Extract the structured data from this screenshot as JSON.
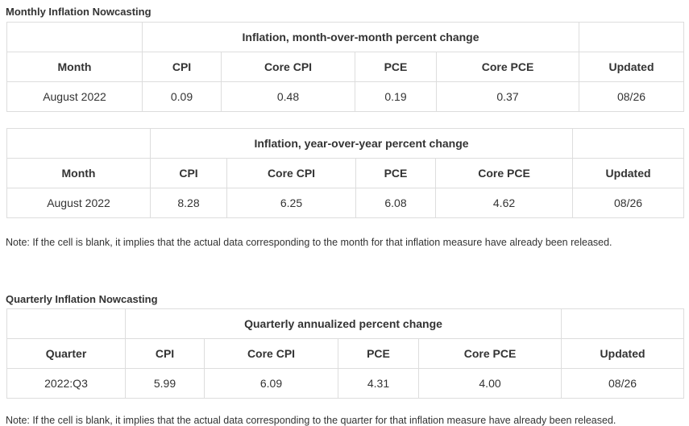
{
  "monthly": {
    "title": "Monthly Inflation Nowcasting",
    "tables": [
      {
        "caption": "Inflation, month-over-month percent change",
        "header": [
          "Month",
          "CPI",
          "Core CPI",
          "PCE",
          "Core PCE",
          "Updated"
        ],
        "rows": [
          [
            "August 2022",
            "0.09",
            "0.48",
            "0.19",
            "0.37",
            "08/26"
          ]
        ]
      },
      {
        "caption": "Inflation, year-over-year percent change",
        "header": [
          "Month",
          "CPI",
          "Core CPI",
          "PCE",
          "Core PCE",
          "Updated"
        ],
        "rows": [
          [
            "August 2022",
            "8.28",
            "6.25",
            "6.08",
            "4.62",
            "08/26"
          ]
        ]
      }
    ],
    "note": "Note: If the cell is blank, it implies that the actual data corresponding to the month for that inflation measure have already been released."
  },
  "quarterly": {
    "title": "Quarterly Inflation Nowcasting",
    "tables": [
      {
        "caption": "Quarterly annualized percent change",
        "header": [
          "Quarter",
          "CPI",
          "Core CPI",
          "PCE",
          "Core PCE",
          "Updated"
        ],
        "rows": [
          [
            "2022:Q3",
            "5.99",
            "6.09",
            "4.31",
            "4.00",
            "08/26"
          ]
        ]
      }
    ],
    "note": "Note: If the cell is blank, it implies that the actual data corresponding to the quarter for that inflation measure have already been released."
  }
}
